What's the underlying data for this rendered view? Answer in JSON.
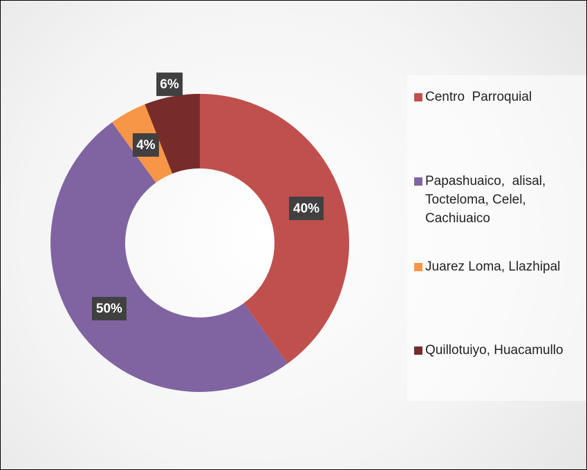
{
  "chart_data": {
    "type": "pie",
    "categories": [
      "Centro  Parroquial",
      "Papashuaico,  alisal, Tocteloma, Celel, Cachiuaico",
      "Juarez Loma, Llazhipal",
      "Quillotuiyo, Huacamullo"
    ],
    "values": [
      40,
      50,
      4,
      6
    ],
    "value_labels": [
      "40%",
      "50%",
      "4%",
      "6%"
    ],
    "colors": [
      "#c0504d",
      "#8064a2",
      "#f79646",
      "#772c2a"
    ],
    "donut": true,
    "legend": "right"
  }
}
